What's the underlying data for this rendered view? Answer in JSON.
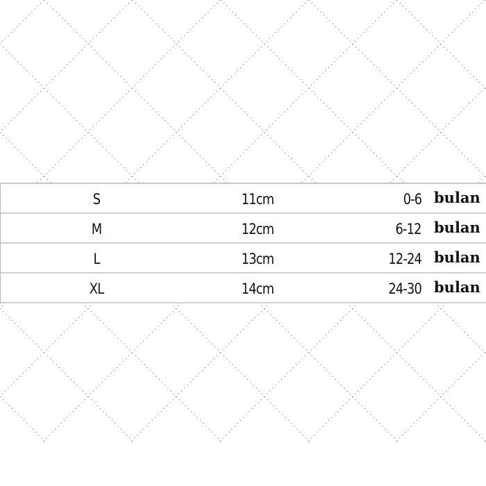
{
  "size_chart": {
    "rows": [
      {
        "size": "S",
        "length": "11cm",
        "age": "0-6",
        "unit": "bulan"
      },
      {
        "size": "M",
        "length": "12cm",
        "age": "6-12",
        "unit": "bulan"
      },
      {
        "size": "L",
        "length": "13cm",
        "age": "12-24",
        "unit": "bulan"
      },
      {
        "size": "XL",
        "length": "14cm",
        "age": "24-30",
        "unit": "bulan"
      }
    ]
  },
  "colors": {
    "pattern_dots": "#9a9a9a",
    "grid_lines": "#cccccc",
    "text": "#111111"
  }
}
